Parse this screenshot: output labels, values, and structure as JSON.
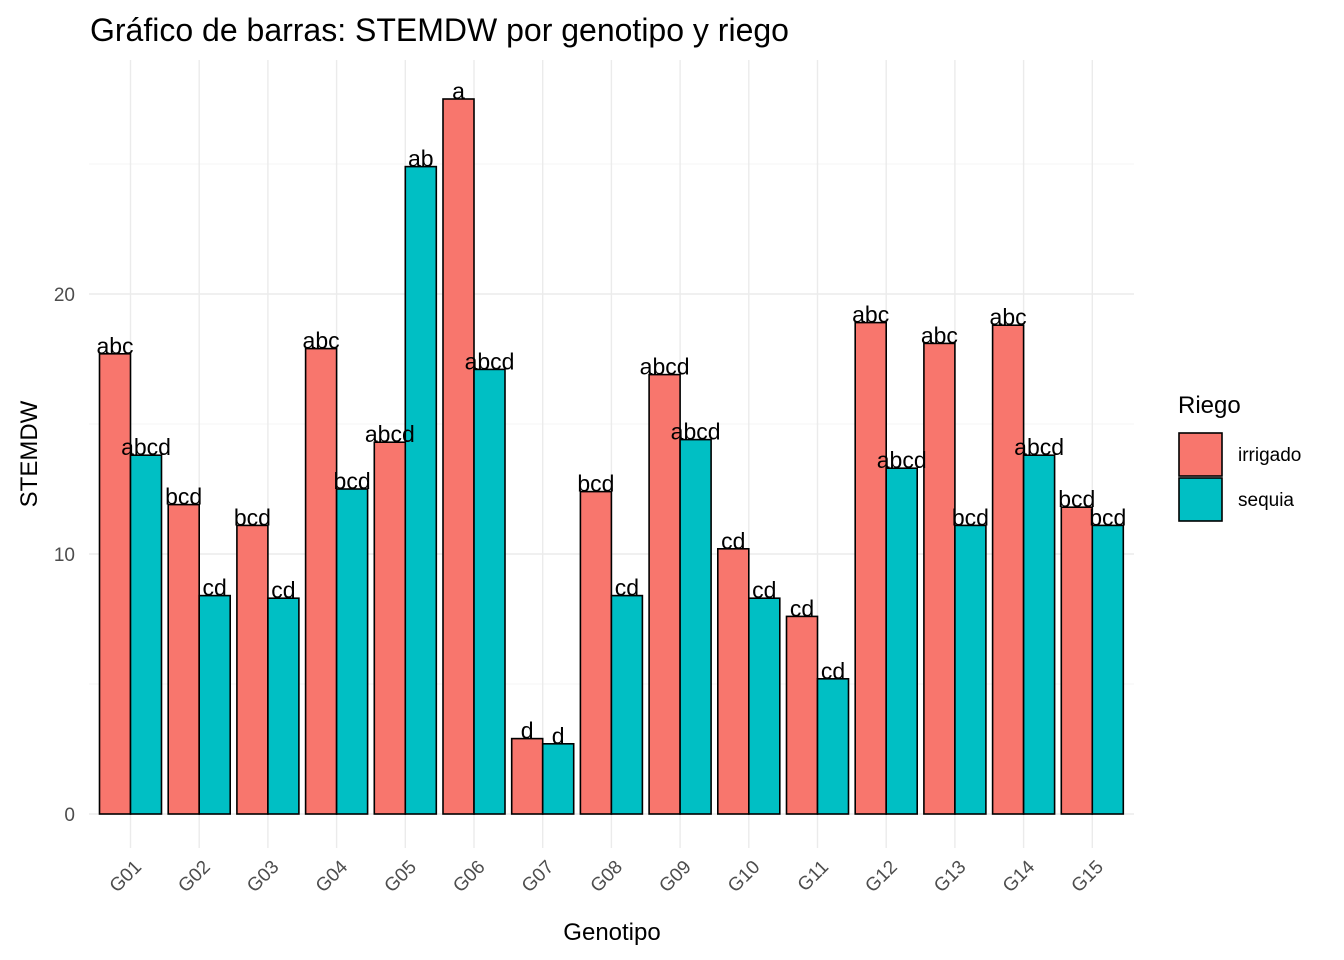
{
  "chart_data": {
    "type": "bar",
    "title": "Gráfico de barras: STEMDW por genotipo y riego",
    "xlabel": "Genotipo",
    "ylabel": "STEMDW",
    "ylim": [
      0,
      28.7
    ],
    "yticks": [
      0,
      10,
      20
    ],
    "y_minor_ticks": [
      5,
      15,
      25
    ],
    "grid": true,
    "legend": {
      "title": "Riego",
      "position": "right"
    },
    "categories": [
      "G01",
      "G02",
      "G03",
      "G04",
      "G05",
      "G06",
      "G07",
      "G08",
      "G09",
      "G10",
      "G11",
      "G12",
      "G13",
      "G14",
      "G15"
    ],
    "series": [
      {
        "name": "irrigado",
        "color": "#F8766D",
        "values": [
          17.7,
          11.9,
          11.1,
          17.9,
          14.3,
          27.5,
          2.9,
          12.4,
          16.9,
          10.2,
          7.6,
          18.9,
          18.1,
          18.8,
          11.8
        ],
        "labels": [
          "abc",
          "bcd",
          "bcd",
          "abc",
          "abcd",
          "a",
          "d",
          "bcd",
          "abcd",
          "cd",
          "cd",
          "abc",
          "abc",
          "abc",
          "bcd"
        ]
      },
      {
        "name": "sequia",
        "color": "#00BFC4",
        "values": [
          13.8,
          8.4,
          8.3,
          12.5,
          24.9,
          17.1,
          2.7,
          8.4,
          14.4,
          8.3,
          5.2,
          13.3,
          11.1,
          13.8,
          11.1
        ],
        "labels": [
          "abcd",
          "cd",
          "cd",
          "bcd",
          "ab",
          "abcd",
          "d",
          "cd",
          "abcd",
          "cd",
          "cd",
          "abcd",
          "bcd",
          "abcd",
          "bcd"
        ]
      }
    ]
  }
}
